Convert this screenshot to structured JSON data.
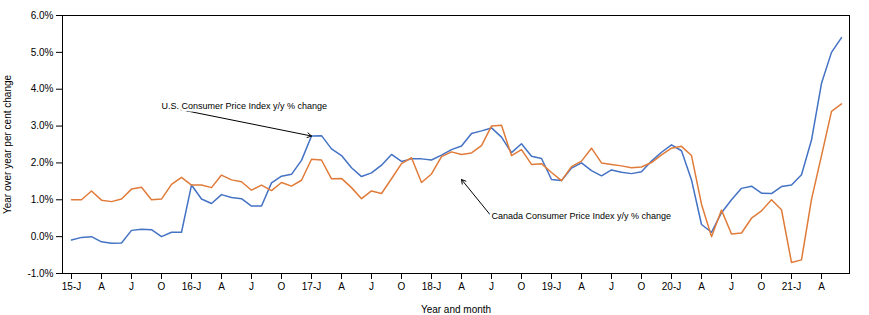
{
  "chart_data": {
    "type": "line",
    "xlabel": "Year and month",
    "ylabel": "Year over year per cent change",
    "categories": [
      "15-J",
      null,
      null,
      "A",
      null,
      null,
      "J",
      null,
      null,
      "O",
      null,
      null,
      "16-J",
      null,
      null,
      "A",
      null,
      null,
      "J",
      null,
      null,
      "O",
      null,
      null,
      "17-J",
      null,
      null,
      "A",
      null,
      null,
      "J",
      null,
      null,
      "O",
      null,
      null,
      "18-J",
      null,
      null,
      "A",
      null,
      null,
      "J",
      null,
      null,
      "O",
      null,
      null,
      "19-J",
      null,
      null,
      "A",
      null,
      null,
      "J",
      null,
      null,
      "O",
      null,
      null,
      "20-J",
      null,
      null,
      "A",
      null,
      null,
      "J",
      null,
      null,
      "O",
      null,
      null,
      "21-J",
      null,
      null,
      "A",
      null,
      null
    ],
    "series": [
      {
        "name": "U.S. Consumer Price Index y/y % change",
        "color": "#4472C4",
        "values": [
          -0.09,
          -0.02,
          0.0,
          -0.14,
          -0.18,
          -0.17,
          0.17,
          0.2,
          0.19,
          0.0,
          0.12,
          0.12,
          1.4,
          1.02,
          0.9,
          1.14,
          1.06,
          1.03,
          0.83,
          0.83,
          1.46,
          1.64,
          1.69,
          2.07,
          2.73,
          2.74,
          2.38,
          2.2,
          1.87,
          1.63,
          1.73,
          1.94,
          2.23,
          2.04,
          2.11,
          2.11,
          2.08,
          2.21,
          2.36,
          2.46,
          2.8,
          2.87,
          2.95,
          2.7,
          2.28,
          2.52,
          2.18,
          2.12,
          1.55,
          1.52,
          1.86,
          2.0,
          1.79,
          1.65,
          1.81,
          1.75,
          1.71,
          1.76,
          2.05,
          2.29,
          2.49,
          2.33,
          1.54,
          0.33,
          0.12,
          0.65,
          1.0,
          1.31,
          1.37,
          1.18,
          1.17,
          1.36,
          1.4,
          1.68,
          2.62,
          4.16,
          5.0,
          5.4
        ]
      },
      {
        "name": "Canada Consumer Price Index y/y % change",
        "color": "#E07B39",
        "values": [
          1.0,
          1.0,
          1.24,
          0.99,
          0.95,
          1.02,
          1.29,
          1.34,
          1.0,
          1.02,
          1.42,
          1.61,
          1.4,
          1.4,
          1.33,
          1.67,
          1.54,
          1.49,
          1.26,
          1.4,
          1.25,
          1.47,
          1.37,
          1.53,
          2.1,
          2.08,
          1.57,
          1.58,
          1.33,
          1.03,
          1.24,
          1.17,
          1.57,
          1.98,
          2.14,
          1.47,
          1.7,
          2.17,
          2.3,
          2.23,
          2.27,
          2.47,
          3.0,
          3.02,
          2.2,
          2.36,
          1.96,
          1.98,
          1.74,
          1.52,
          1.9,
          2.05,
          2.4,
          2.0,
          1.96,
          1.92,
          1.87,
          1.89,
          2.01,
          2.22,
          2.4,
          2.45,
          2.2,
          0.88,
          0.0,
          0.72,
          0.07,
          0.1,
          0.5,
          0.7,
          1.0,
          0.73,
          -0.7,
          -0.63,
          1.01,
          2.2,
          3.4,
          3.6
        ]
      }
    ],
    "ylim": [
      -1.0,
      6.0
    ],
    "yticks": [
      {
        "value": -1.0,
        "label": "-1.0%"
      },
      {
        "value": 0.0,
        "label": "0.0%"
      },
      {
        "value": 1.0,
        "label": "1.0%"
      },
      {
        "value": 2.0,
        "label": "2.0%"
      },
      {
        "value": 3.0,
        "label": "3.0%"
      },
      {
        "value": 4.0,
        "label": "4.0%"
      },
      {
        "value": 5.0,
        "label": "5.0%"
      },
      {
        "value": 6.0,
        "label": "6.0%"
      }
    ],
    "annotations": [
      {
        "text": "U.S. Consumer Price Index y/y % change",
        "x": 24,
        "y": 2.73,
        "text_x": 9,
        "text_y": 3.55
      },
      {
        "text": "Canada Consumer Price Index y/y % change",
        "x": 39,
        "y": 1.55,
        "text_x": 42,
        "text_y": 0.55
      }
    ],
    "grid": false
  }
}
